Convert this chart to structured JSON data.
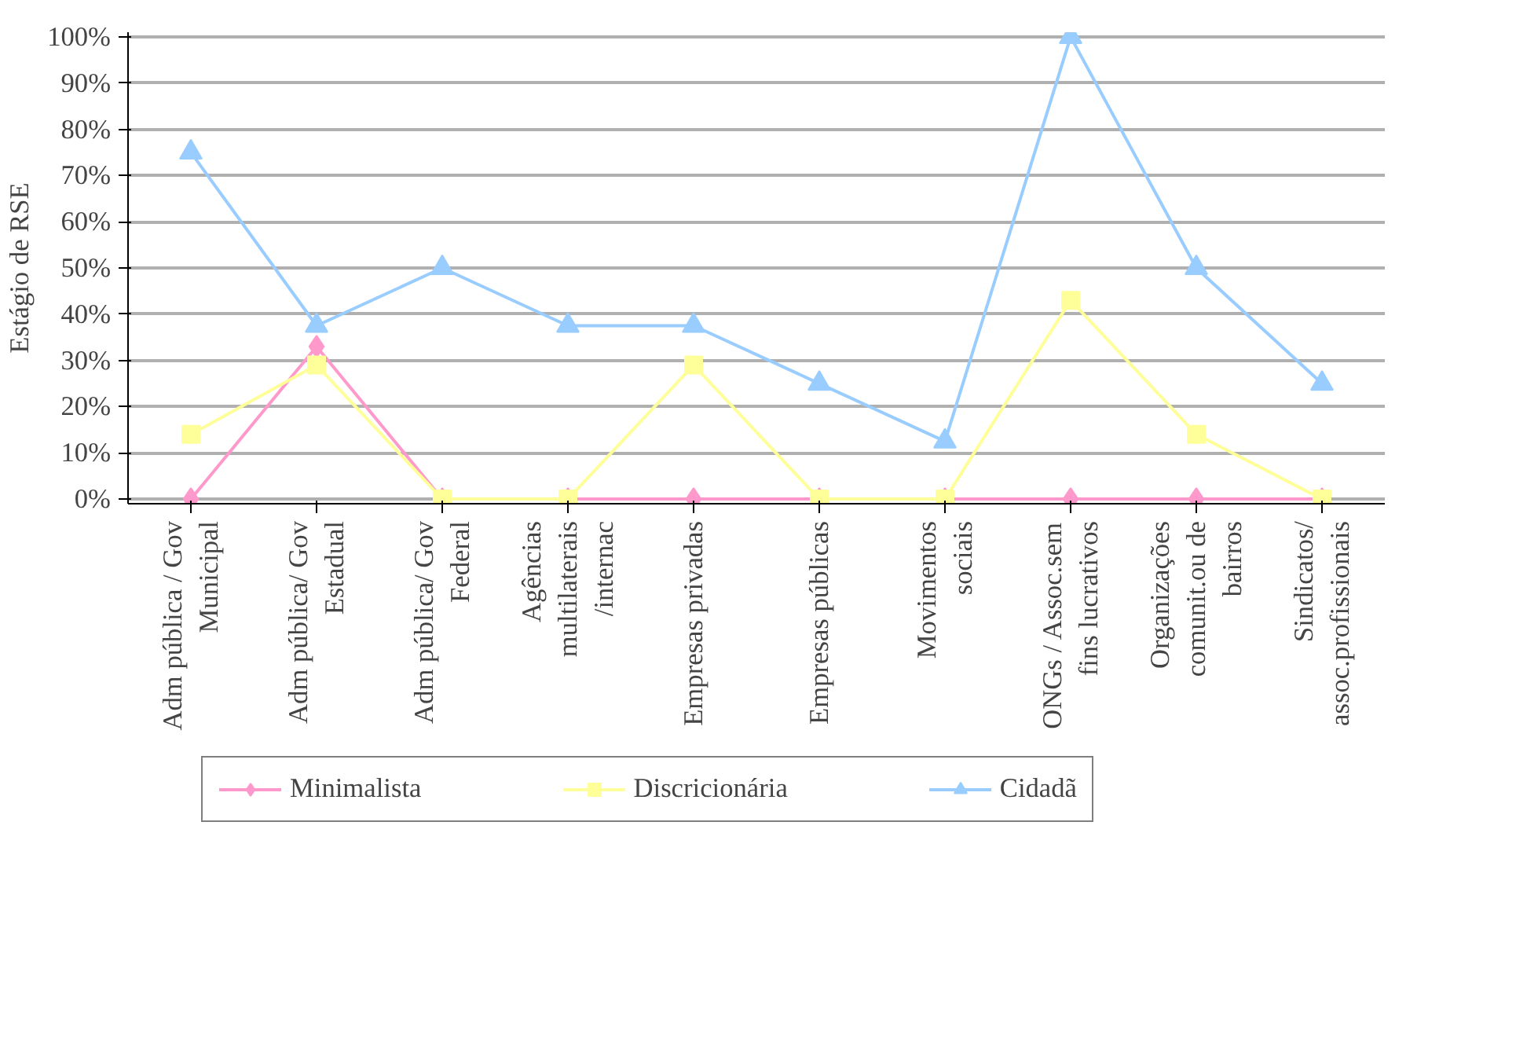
{
  "chart_data": {
    "type": "line",
    "ylabel": "Estágio de RSE",
    "categories": [
      "Adm pública / Gov\nMunicipal",
      "Adm pública/ Gov\nEstadual",
      "Adm pública/ Gov\nFederal",
      "Agências\nmultilaterais\n/internac",
      "Empresas privadas",
      "Empresas públicas",
      "Movimentos\nsociais",
      "ONGs / Assoc.sem\nfins lucrativos",
      "Organizações\ncomunit.ou de\nbairros",
      "Sindicatos/\nassoc.profissionais"
    ],
    "series": [
      {
        "name": "Minimalista",
        "color": "#ff99cc",
        "marker": "diamond",
        "values": [
          0,
          33,
          0,
          0,
          0,
          0,
          0,
          0,
          0,
          0
        ]
      },
      {
        "name": "Discricionária",
        "color": "#ffff99",
        "marker": "square",
        "values": [
          14,
          29,
          0,
          0,
          29,
          0,
          0,
          43,
          14,
          0
        ]
      },
      {
        "name": "Cidadã",
        "color": "#99ccff",
        "marker": "triangle",
        "values": [
          75,
          37.5,
          50,
          37.5,
          37.5,
          25,
          12.5,
          100,
          50,
          25
        ]
      }
    ],
    "ylim": [
      0,
      100
    ],
    "yticks": [
      {
        "value": 0,
        "label": "0%"
      },
      {
        "value": 10,
        "label": "10%"
      },
      {
        "value": 20,
        "label": "20%"
      },
      {
        "value": 30,
        "label": "30%"
      },
      {
        "value": 40,
        "label": "40%"
      },
      {
        "value": 50,
        "label": "50%"
      },
      {
        "value": 60,
        "label": "60%"
      },
      {
        "value": 70,
        "label": "70%"
      },
      {
        "value": 80,
        "label": "80%"
      },
      {
        "value": 90,
        "label": "90%"
      },
      {
        "value": 100,
        "label": "100%"
      }
    ],
    "grid": "y",
    "legend": "bottom"
  }
}
